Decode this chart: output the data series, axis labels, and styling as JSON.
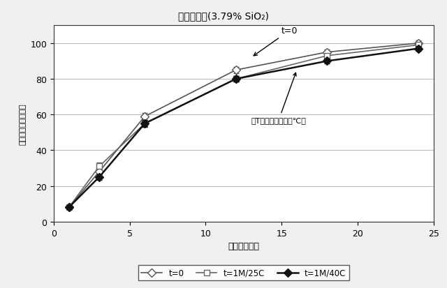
{
  "title_prefix": "製剤１２：",
  "title_suffix": "(3.79% SiO₂)",
  "xlabel": "時間（時間）",
  "ylabel": "累積薬物放出（％）",
  "xlim": [
    0,
    25
  ],
  "ylim": [
    0,
    110
  ],
  "yticks": [
    0,
    20,
    40,
    60,
    80,
    100
  ],
  "xticks": [
    0,
    5,
    10,
    15,
    20,
    25
  ],
  "x": [
    1,
    3,
    6,
    12,
    18,
    24
  ],
  "t0_y": [
    8,
    28,
    59,
    85,
    95,
    100
  ],
  "t0_ye": [
    0.5,
    1.5,
    2.0,
    1.8,
    1.5,
    1.5
  ],
  "t1m25_y": [
    8,
    31,
    55,
    80,
    93,
    99
  ],
  "t1m25_ye": [
    0.5,
    2.0,
    2.0,
    1.5,
    1.5,
    1.5
  ],
  "t1m40_y": [
    8,
    25,
    55,
    80,
    90,
    97
  ],
  "t1m40_ye": [
    0.5,
    1.5,
    2.0,
    1.5,
    1.5,
    1.5
  ],
  "color_t0": "#555555",
  "color_t1m25": "#666666",
  "color_t1m40": "#111111",
  "annotation_t0": "t=0",
  "annotation_t1m40": "（T＝１カ月、４０℃）",
  "legend_labels": [
    "t=0",
    "t=1M/25C",
    "t=1M/40C"
  ],
  "bg_color": "#f0f0f0",
  "plot_bg": "#ffffff",
  "grid_color": "#bbbbbb"
}
